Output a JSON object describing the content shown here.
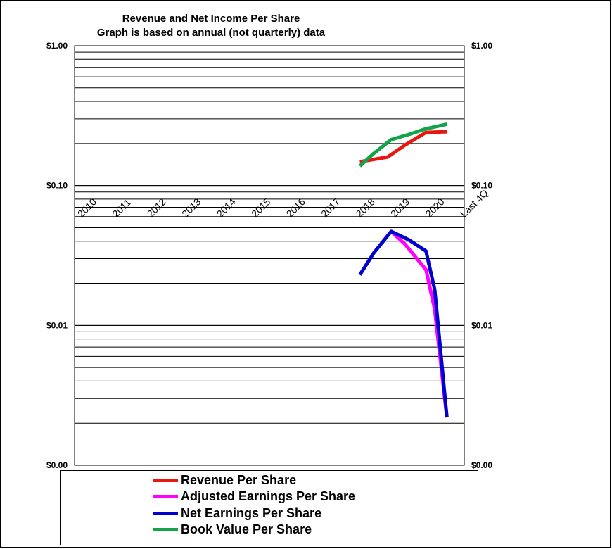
{
  "chart_data": {
    "type": "line",
    "title": "Revenue  and Net Income  Per Share",
    "subtitle": "Graph is based  on annual  (not quarterly) data",
    "y_scale": "log",
    "ylim": [
      0.001,
      1.0
    ],
    "y_tick_labels": [
      {
        "value": 1.0,
        "label": "$1.00"
      },
      {
        "value": 0.1,
        "label": "$0.10"
      },
      {
        "value": 0.01,
        "label": "$0.01"
      },
      {
        "value": 0.001,
        "label": "$0.00"
      }
    ],
    "categories": [
      "2010",
      "2011",
      "2012",
      "2013",
      "2014",
      "2015",
      "2016",
      "2017",
      "2018",
      "2019",
      "2020",
      "Last 4Q"
    ],
    "grid": true,
    "legend_position": "bottom",
    "series": [
      {
        "name": "Revenue Per Share",
        "color": "#e8170f",
        "points": [
          {
            "x": 8.2,
            "y": 0.148
          },
          {
            "x": 9.0,
            "y": 0.16
          },
          {
            "x": 9.5,
            "y": 0.195
          },
          {
            "x": 10.1,
            "y": 0.24
          },
          {
            "x": 10.7,
            "y": 0.243
          }
        ]
      },
      {
        "name": "Adjusted Earnings Per Share",
        "color": "#ff00ff",
        "points": [
          {
            "x": 9.1,
            "y": 0.047
          },
          {
            "x": 9.5,
            "y": 0.038
          },
          {
            "x": 10.1,
            "y": 0.025
          },
          {
            "x": 10.35,
            "y": 0.013
          },
          {
            "x": 10.7,
            "y": 0.0022
          }
        ]
      },
      {
        "name": "Net Earnings Per Share",
        "color": "#0000d0",
        "points": [
          {
            "x": 8.2,
            "y": 0.023
          },
          {
            "x": 8.6,
            "y": 0.033
          },
          {
            "x": 9.1,
            "y": 0.047
          },
          {
            "x": 9.6,
            "y": 0.041
          },
          {
            "x": 10.1,
            "y": 0.034
          },
          {
            "x": 10.35,
            "y": 0.018
          },
          {
            "x": 10.7,
            "y": 0.0022
          }
        ]
      },
      {
        "name": "Book Value Per Share",
        "color": "#13a44a",
        "points": [
          {
            "x": 8.2,
            "y": 0.138
          },
          {
            "x": 8.6,
            "y": 0.17
          },
          {
            "x": 9.1,
            "y": 0.213
          },
          {
            "x": 9.6,
            "y": 0.232
          },
          {
            "x": 10.1,
            "y": 0.255
          },
          {
            "x": 10.7,
            "y": 0.275
          }
        ]
      }
    ]
  }
}
